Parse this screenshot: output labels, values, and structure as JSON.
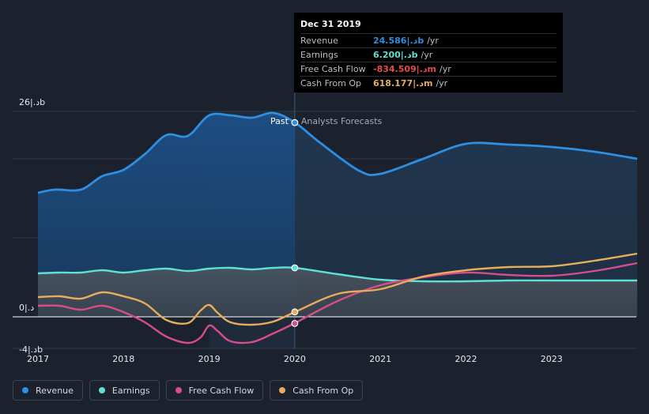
{
  "chart_data": {
    "type": "line",
    "x_ticks": [
      "2017",
      "2018",
      "2019",
      "2020",
      "2021",
      "2022",
      "2023"
    ],
    "y_ticks": [
      {
        "value": 26,
        "label": "26|.دb"
      },
      {
        "value": 0,
        "label": "0|.د"
      },
      {
        "value": -4,
        "label": "-4|.دb"
      }
    ],
    "ylim": [
      -4,
      26
    ],
    "divider_x": 2020.0,
    "past_label": "Past",
    "forecast_label": "Analysts Forecasts",
    "series": [
      {
        "key": "revenue",
        "name": "Revenue",
        "color": "#2e8ee1",
        "fill": true,
        "points": [
          [
            2017.0,
            15.7
          ],
          [
            2017.2,
            16.1
          ],
          [
            2017.5,
            16.1
          ],
          [
            2017.75,
            17.8
          ],
          [
            2018.0,
            18.6
          ],
          [
            2018.25,
            20.6
          ],
          [
            2018.5,
            23.0
          ],
          [
            2018.75,
            22.9
          ],
          [
            2019.0,
            25.5
          ],
          [
            2019.25,
            25.5
          ],
          [
            2019.5,
            25.2
          ],
          [
            2019.75,
            25.8
          ],
          [
            2020.0,
            24.6
          ],
          [
            2020.3,
            22.0
          ],
          [
            2020.75,
            18.5
          ],
          [
            2021.0,
            18.1
          ],
          [
            2021.5,
            20.0
          ],
          [
            2022.0,
            21.9
          ],
          [
            2022.5,
            21.8
          ],
          [
            2023.0,
            21.5
          ],
          [
            2023.5,
            20.9
          ],
          [
            2024.0,
            20.0
          ]
        ]
      },
      {
        "key": "earnings",
        "name": "Earnings",
        "color": "#5fe0d2",
        "fill": true,
        "points": [
          [
            2017.0,
            5.5
          ],
          [
            2017.25,
            5.6
          ],
          [
            2017.5,
            5.6
          ],
          [
            2017.75,
            5.9
          ],
          [
            2018.0,
            5.6
          ],
          [
            2018.25,
            5.9
          ],
          [
            2018.5,
            6.1
          ],
          [
            2018.75,
            5.8
          ],
          [
            2019.0,
            6.1
          ],
          [
            2019.25,
            6.2
          ],
          [
            2019.5,
            6.0
          ],
          [
            2019.75,
            6.2
          ],
          [
            2020.0,
            6.2
          ],
          [
            2020.5,
            5.4
          ],
          [
            2021.0,
            4.7
          ],
          [
            2021.5,
            4.5
          ],
          [
            2022.0,
            4.5
          ],
          [
            2022.5,
            4.6
          ],
          [
            2023.0,
            4.6
          ],
          [
            2024.0,
            4.6
          ]
        ]
      },
      {
        "key": "fcf",
        "name": "Free Cash Flow",
        "color": "#d74d8b",
        "fill": false,
        "points": [
          [
            2017.0,
            1.4
          ],
          [
            2017.25,
            1.4
          ],
          [
            2017.5,
            0.9
          ],
          [
            2017.75,
            1.4
          ],
          [
            2018.0,
            0.6
          ],
          [
            2018.25,
            -0.7
          ],
          [
            2018.5,
            -2.5
          ],
          [
            2018.75,
            -3.3
          ],
          [
            2018.9,
            -2.6
          ],
          [
            2019.0,
            -1.1
          ],
          [
            2019.1,
            -1.8
          ],
          [
            2019.25,
            -3.1
          ],
          [
            2019.5,
            -3.2
          ],
          [
            2019.75,
            -2.1
          ],
          [
            2020.0,
            -0.8
          ],
          [
            2020.5,
            2.0
          ],
          [
            2021.0,
            4.0
          ],
          [
            2021.5,
            5.0
          ],
          [
            2022.0,
            5.6
          ],
          [
            2022.5,
            5.3
          ],
          [
            2023.0,
            5.2
          ],
          [
            2023.5,
            5.8
          ],
          [
            2024.0,
            6.8
          ]
        ]
      },
      {
        "key": "cfo",
        "name": "Cash From Op",
        "color": "#e8ad5a",
        "fill": false,
        "points": [
          [
            2017.0,
            2.5
          ],
          [
            2017.25,
            2.6
          ],
          [
            2017.5,
            2.3
          ],
          [
            2017.75,
            3.1
          ],
          [
            2018.0,
            2.6
          ],
          [
            2018.25,
            1.7
          ],
          [
            2018.5,
            -0.4
          ],
          [
            2018.75,
            -0.8
          ],
          [
            2018.9,
            0.8
          ],
          [
            2019.0,
            1.5
          ],
          [
            2019.1,
            0.5
          ],
          [
            2019.25,
            -0.7
          ],
          [
            2019.5,
            -1.0
          ],
          [
            2019.75,
            -0.6
          ],
          [
            2020.0,
            0.6
          ],
          [
            2020.5,
            2.9
          ],
          [
            2021.0,
            3.5
          ],
          [
            2021.5,
            5.1
          ],
          [
            2022.0,
            5.9
          ],
          [
            2022.5,
            6.3
          ],
          [
            2023.0,
            6.4
          ],
          [
            2023.5,
            7.1
          ],
          [
            2024.0,
            8.0
          ]
        ]
      }
    ],
    "highlight": {
      "x": 2020.0,
      "values": {
        "revenue": 24.586,
        "earnings": 6.2,
        "fcf": -0.835,
        "cfo": 0.618
      }
    }
  },
  "tooltip": {
    "date": "Dec 31 2019",
    "unit": "/yr",
    "rows": [
      {
        "label": "Revenue",
        "value": "24.586|.دb",
        "color": "#2e8ee1"
      },
      {
        "label": "Earnings",
        "value": "6.200|.دb",
        "color": "#5fe0d2"
      },
      {
        "label": "Free Cash Flow",
        "value": "-834.509|.دm",
        "color": "#e64a4a"
      },
      {
        "label": "Cash From Op",
        "value": "618.177|.دm",
        "color": "#e8ad5a"
      }
    ]
  },
  "legend": [
    {
      "label": "Revenue",
      "color": "#2e8ee1"
    },
    {
      "label": "Earnings",
      "color": "#5fe0d2"
    },
    {
      "label": "Free Cash Flow",
      "color": "#d74d8b"
    },
    {
      "label": "Cash From Op",
      "color": "#e8ad5a"
    }
  ]
}
